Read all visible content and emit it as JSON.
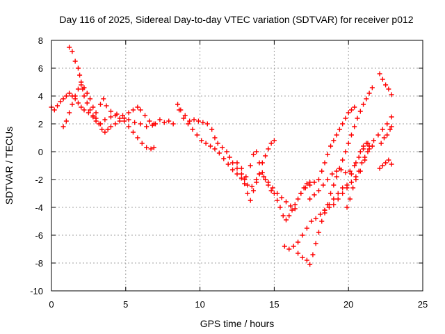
{
  "chart_data": {
    "type": "scatter",
    "title": "Day 116 of 2025, Sidereal Day-to-day VTEC variation (SDTVAR) for receiver p012",
    "xlabel": "GPS time / hours",
    "ylabel": "SDTVAR / TECUs",
    "xlim": [
      0,
      25
    ],
    "ylim": [
      -10,
      8
    ],
    "xticks": [
      "0",
      "5",
      "10",
      "15",
      "20",
      "25"
    ],
    "yticks": [
      "8",
      "6",
      "4",
      "2",
      "0",
      "-2",
      "-4",
      "-6",
      "-8",
      "-10"
    ],
    "xtick_values": [
      0,
      5,
      10,
      15,
      20,
      25
    ],
    "ytick_values": [
      8,
      6,
      4,
      2,
      0,
      -2,
      -4,
      -6,
      -8,
      -10
    ],
    "grid": true,
    "marker": "+",
    "color": "#ff0000",
    "series": [
      {
        "values": [
          [
            0.0,
            3.2
          ],
          [
            0.2,
            3.0
          ],
          [
            0.4,
            3.3
          ],
          [
            0.6,
            3.6
          ],
          [
            0.8,
            3.8
          ],
          [
            1.0,
            4.0
          ],
          [
            1.2,
            4.2
          ],
          [
            1.4,
            4.0
          ],
          [
            1.6,
            3.8
          ],
          [
            1.8,
            3.5
          ],
          [
            2.0,
            3.2
          ],
          [
            2.2,
            3.0
          ],
          [
            2.5,
            2.8
          ],
          [
            2.8,
            2.5
          ],
          [
            3.0,
            2.2
          ],
          [
            3.3,
            2.0
          ],
          [
            3.6,
            2.3
          ],
          [
            4.0,
            2.5
          ],
          [
            4.4,
            2.7
          ],
          [
            4.8,
            2.6
          ],
          [
            5.2,
            2.3
          ],
          [
            5.6,
            2.1
          ],
          [
            6.0,
            2.0
          ],
          [
            6.4,
            1.8
          ],
          [
            6.8,
            1.9
          ]
        ]
      },
      {
        "values": [
          [
            1.2,
            7.5
          ],
          [
            1.4,
            7.2
          ],
          [
            1.6,
            6.5
          ],
          [
            1.8,
            6.0
          ],
          [
            1.9,
            5.5
          ],
          [
            2.0,
            5.0
          ],
          [
            2.1,
            4.5
          ],
          [
            2.2,
            4.0
          ],
          [
            2.4,
            3.5
          ],
          [
            2.6,
            3.0
          ],
          [
            2.8,
            2.6
          ],
          [
            3.0,
            2.4
          ],
          [
            3.2,
            2.0
          ],
          [
            3.4,
            1.6
          ],
          [
            3.6,
            1.4
          ],
          [
            3.8,
            1.6
          ],
          [
            4.0,
            1.8
          ],
          [
            4.3,
            2.0
          ],
          [
            4.6,
            2.2
          ],
          [
            4.9,
            2.4
          ],
          [
            5.2,
            2.8
          ],
          [
            5.5,
            3.0
          ],
          [
            5.8,
            3.2
          ],
          [
            6.0,
            3.0
          ],
          [
            6.3,
            2.6
          ],
          [
            6.6,
            2.2
          ],
          [
            6.9,
            2.0
          ]
        ]
      },
      {
        "values": [
          [
            0.8,
            1.8
          ],
          [
            1.0,
            2.2
          ],
          [
            1.2,
            2.8
          ],
          [
            1.4,
            3.4
          ],
          [
            1.6,
            4.0
          ],
          [
            1.8,
            4.5
          ],
          [
            2.0,
            4.8
          ],
          [
            2.2,
            4.6
          ],
          [
            2.4,
            4.2
          ],
          [
            2.6,
            3.8
          ],
          [
            2.8,
            3.2
          ],
          [
            3.0,
            2.8
          ],
          [
            3.3,
            3.4
          ],
          [
            3.5,
            3.8
          ],
          [
            3.7,
            3.3
          ],
          [
            4.0,
            2.9
          ],
          [
            4.3,
            2.6
          ],
          [
            4.6,
            2.4
          ],
          [
            4.9,
            2.2
          ],
          [
            5.2,
            1.8
          ],
          [
            5.5,
            1.4
          ],
          [
            5.8,
            1.0
          ],
          [
            6.1,
            0.6
          ],
          [
            6.4,
            0.3
          ],
          [
            6.7,
            0.2
          ],
          [
            6.9,
            0.3
          ]
        ]
      },
      {
        "values": [
          [
            7.0,
            2.0
          ],
          [
            7.3,
            2.3
          ],
          [
            7.6,
            2.1
          ],
          [
            7.9,
            2.2
          ],
          [
            8.2,
            2.0
          ],
          [
            8.5,
            3.4
          ],
          [
            8.7,
            3.0
          ],
          [
            9.0,
            2.6
          ],
          [
            9.3,
            2.2
          ],
          [
            9.6,
            2.3
          ],
          [
            9.9,
            2.2
          ],
          [
            10.2,
            2.1
          ],
          [
            10.5,
            2.0
          ],
          [
            10.8,
            1.6
          ],
          [
            11.0,
            1.0
          ],
          [
            11.2,
            0.6
          ],
          [
            11.5,
            0.3
          ],
          [
            11.8,
            0.0
          ],
          [
            12.0,
            -0.4
          ],
          [
            12.2,
            -0.8
          ],
          [
            12.5,
            -1.2
          ],
          [
            12.8,
            -1.6
          ],
          [
            13.0,
            -2.0
          ],
          [
            13.2,
            -2.4
          ],
          [
            13.5,
            -2.5
          ],
          [
            13.8,
            -2.0
          ],
          [
            14.0,
            -1.6
          ],
          [
            14.3,
            -1.8
          ],
          [
            14.6,
            -2.2
          ],
          [
            14.9,
            -2.6
          ],
          [
            15.2,
            -3.0
          ],
          [
            15.5,
            -3.3
          ],
          [
            15.8,
            -3.6
          ],
          [
            16.1,
            -3.9
          ],
          [
            16.4,
            -4.1
          ]
        ]
      },
      {
        "values": [
          [
            8.6,
            3.0
          ],
          [
            8.9,
            2.4
          ],
          [
            9.2,
            2.0
          ],
          [
            9.5,
            1.6
          ],
          [
            9.8,
            1.2
          ],
          [
            10.1,
            0.8
          ],
          [
            10.4,
            0.6
          ],
          [
            10.7,
            0.4
          ],
          [
            11.0,
            0.2
          ],
          [
            11.3,
            -0.1
          ],
          [
            11.6,
            -0.5
          ],
          [
            11.9,
            -0.9
          ],
          [
            12.2,
            -1.3
          ],
          [
            12.5,
            -1.6
          ],
          [
            12.8,
            -1.9
          ],
          [
            13.0,
            -2.3
          ],
          [
            13.2,
            -3.0
          ],
          [
            13.4,
            -3.5
          ],
          [
            13.6,
            -2.8
          ],
          [
            13.8,
            -2.2
          ],
          [
            14.0,
            -1.6
          ],
          [
            14.2,
            -0.8
          ],
          [
            14.4,
            -0.3
          ],
          [
            14.6,
            0.2
          ],
          [
            14.8,
            0.6
          ],
          [
            15.0,
            0.8
          ]
        ]
      },
      {
        "values": [
          [
            12.5,
            -0.8
          ],
          [
            12.8,
            -1.2
          ],
          [
            13.1,
            -1.8
          ],
          [
            13.4,
            -1.0
          ],
          [
            13.6,
            -0.2
          ],
          [
            13.8,
            0.0
          ],
          [
            14.0,
            -0.8
          ],
          [
            14.2,
            -1.5
          ],
          [
            14.4,
            -2.0
          ],
          [
            14.6,
            -2.4
          ],
          [
            14.8,
            -2.8
          ],
          [
            15.0,
            -3.0
          ],
          [
            15.2,
            -3.5
          ],
          [
            15.4,
            -4.0
          ],
          [
            15.6,
            -4.6
          ],
          [
            15.8,
            -4.9
          ],
          [
            16.0,
            -4.6
          ],
          [
            16.2,
            -4.2
          ],
          [
            16.4,
            -3.8
          ],
          [
            16.6,
            -3.4
          ],
          [
            16.8,
            -3.0
          ],
          [
            17.0,
            -2.6
          ],
          [
            17.2,
            -2.3
          ],
          [
            17.4,
            -2.2
          ]
        ]
      },
      {
        "values": [
          [
            15.7,
            -6.8
          ],
          [
            16.0,
            -7.0
          ],
          [
            16.3,
            -6.8
          ],
          [
            16.6,
            -6.5
          ],
          [
            16.9,
            -6.0
          ],
          [
            17.2,
            -5.5
          ],
          [
            17.5,
            -5.0
          ],
          [
            17.8,
            -4.8
          ],
          [
            18.1,
            -4.5
          ],
          [
            18.4,
            -4.2
          ],
          [
            18.7,
            -4.0
          ],
          [
            19.0,
            -3.8
          ],
          [
            19.3,
            -3.4
          ],
          [
            19.6,
            -3.0
          ],
          [
            19.9,
            -2.6
          ],
          [
            20.2,
            -2.2
          ],
          [
            20.5,
            -1.8
          ],
          [
            20.8,
            -1.4
          ],
          [
            21.1,
            -0.6
          ],
          [
            21.4,
            0.2
          ],
          [
            21.7,
            0.8
          ],
          [
            22.0,
            1.2
          ],
          [
            22.3,
            1.6
          ],
          [
            22.6,
            2.0
          ],
          [
            22.9,
            2.5
          ]
        ]
      },
      {
        "values": [
          [
            16.6,
            -7.3
          ],
          [
            16.9,
            -7.6
          ],
          [
            17.2,
            -7.8
          ],
          [
            17.4,
            -8.1
          ],
          [
            17.6,
            -7.4
          ],
          [
            17.8,
            -6.6
          ],
          [
            18.0,
            -5.8
          ],
          [
            18.2,
            -5.0
          ],
          [
            18.4,
            -4.4
          ],
          [
            18.6,
            -3.8
          ],
          [
            18.8,
            -3.0
          ],
          [
            19.0,
            -2.4
          ],
          [
            19.2,
            -1.8
          ],
          [
            19.4,
            -1.2
          ],
          [
            19.6,
            -0.6
          ],
          [
            19.8,
            0.0
          ],
          [
            20.0,
            0.6
          ],
          [
            20.2,
            1.2
          ],
          [
            20.4,
            1.8
          ],
          [
            20.6,
            2.4
          ],
          [
            20.8,
            2.9
          ],
          [
            21.0,
            3.4
          ],
          [
            21.2,
            3.8
          ],
          [
            21.4,
            4.2
          ],
          [
            21.6,
            4.6
          ]
        ]
      },
      {
        "values": [
          [
            16.8,
            -3.0
          ],
          [
            17.1,
            -2.6
          ],
          [
            17.4,
            -2.4
          ],
          [
            17.7,
            -2.2
          ],
          [
            18.0,
            -2.0
          ],
          [
            18.2,
            -1.4
          ],
          [
            18.4,
            -0.8
          ],
          [
            18.6,
            -0.2
          ],
          [
            18.8,
            0.4
          ],
          [
            19.0,
            0.8
          ],
          [
            19.2,
            1.2
          ],
          [
            19.4,
            1.6
          ],
          [
            19.6,
            2.0
          ],
          [
            19.8,
            2.4
          ],
          [
            20.0,
            2.8
          ],
          [
            20.2,
            3.0
          ],
          [
            20.4,
            3.2
          ]
        ]
      },
      {
        "values": [
          [
            17.4,
            -3.4
          ],
          [
            17.7,
            -3.1
          ],
          [
            18.0,
            -2.8
          ],
          [
            18.3,
            -2.4
          ],
          [
            18.6,
            -2.0
          ],
          [
            18.9,
            -1.6
          ],
          [
            19.2,
            -1.4
          ],
          [
            19.5,
            -1.3
          ],
          [
            19.8,
            -1.5
          ],
          [
            20.1,
            -1.4
          ],
          [
            20.4,
            -1.0
          ],
          [
            20.7,
            -0.4
          ],
          [
            21.0,
            0.2
          ],
          [
            21.3,
            0.6
          ],
          [
            21.6,
            0.4
          ]
        ]
      },
      {
        "values": [
          [
            18.4,
            -4.2
          ],
          [
            18.7,
            -3.8
          ],
          [
            19.0,
            -3.4
          ],
          [
            19.3,
            -3.0
          ],
          [
            19.6,
            -2.6
          ],
          [
            19.9,
            -2.4
          ],
          [
            20.2,
            -1.6
          ],
          [
            20.5,
            -0.8
          ],
          [
            20.8,
            0.0
          ],
          [
            21.0,
            0.4
          ],
          [
            21.2,
            0.6
          ],
          [
            21.4,
            0.4
          ]
        ]
      },
      {
        "values": [
          [
            19.9,
            -4.0
          ],
          [
            20.1,
            -3.4
          ],
          [
            20.3,
            -2.6
          ],
          [
            20.5,
            -2.0
          ],
          [
            20.7,
            -1.4
          ],
          [
            20.9,
            -0.8
          ],
          [
            21.1,
            -0.4
          ],
          [
            21.3,
            0.0
          ]
        ]
      },
      {
        "values": [
          [
            22.1,
            5.6
          ],
          [
            22.3,
            5.2
          ],
          [
            22.5,
            4.8
          ],
          [
            22.7,
            4.5
          ],
          [
            22.9,
            4.1
          ]
        ]
      },
      {
        "values": [
          [
            22.2,
            0.6
          ],
          [
            22.4,
            1.0
          ],
          [
            22.6,
            1.2
          ],
          [
            22.8,
            1.6
          ],
          [
            22.9,
            1.8
          ]
        ]
      },
      {
        "values": [
          [
            22.1,
            -1.2
          ],
          [
            22.3,
            -1.0
          ],
          [
            22.5,
            -0.8
          ],
          [
            22.7,
            -0.6
          ],
          [
            22.9,
            -0.9
          ]
        ]
      }
    ]
  }
}
